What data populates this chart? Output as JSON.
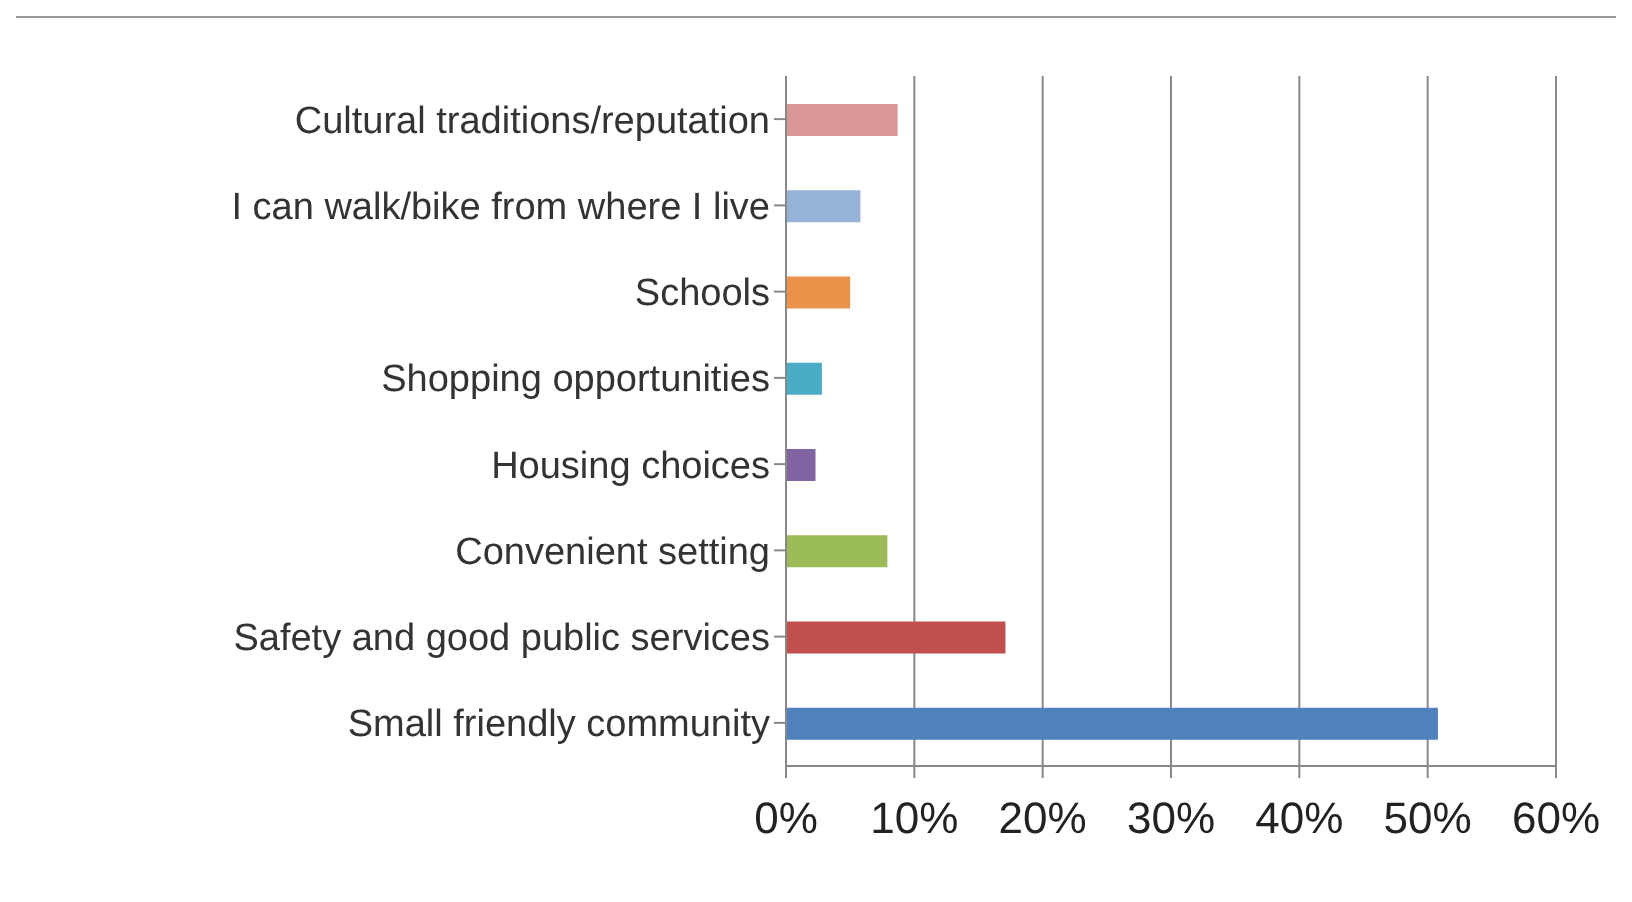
{
  "chart_data": {
    "type": "bar",
    "orientation": "horizontal",
    "categories": [
      "Cultural traditions/reputation",
      "I can walk/bike from where I live",
      "Schools",
      "Shopping opportunities",
      "Housing choices",
      "Convenient setting",
      "Safety and good public services",
      "Small friendly community"
    ],
    "values": [
      8.7,
      5.8,
      5.0,
      2.8,
      2.3,
      7.9,
      17.1,
      50.8
    ],
    "colors": [
      "#d99694",
      "#95b3d7",
      "#e8924a",
      "#4bacc6",
      "#8064a2",
      "#9bbb59",
      "#c0504d",
      "#4f81bd"
    ],
    "xlim": [
      0,
      60
    ],
    "xticks": [
      {
        "value": 0,
        "label": "0%"
      },
      {
        "value": 10,
        "label": "10%"
      },
      {
        "value": 20,
        "label": "20%"
      },
      {
        "value": 30,
        "label": "30%"
      },
      {
        "value": 40,
        "label": "40%"
      },
      {
        "value": 50,
        "label": "50%"
      },
      {
        "value": 60,
        "label": "60%"
      }
    ],
    "grid": "x"
  }
}
